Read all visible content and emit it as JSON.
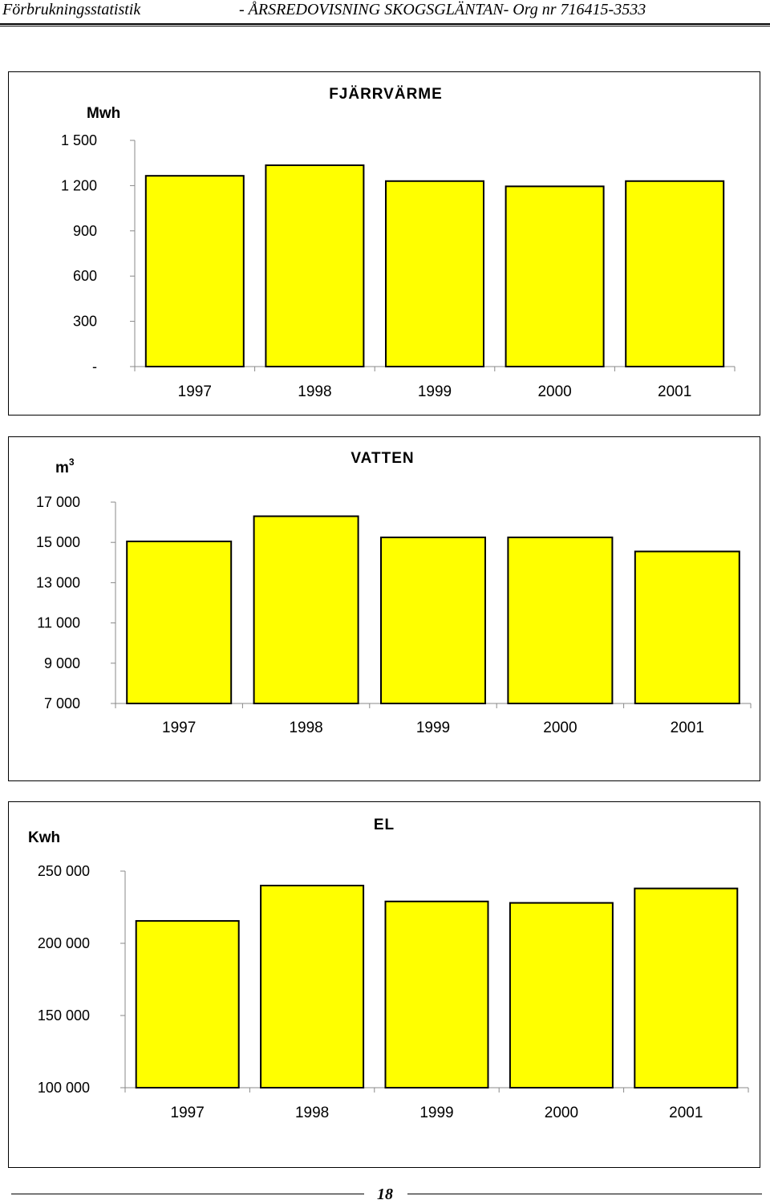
{
  "header": {
    "left": "Förbrukningsstatistik",
    "right": "- ÅRSREDOVISNING SKOGSGLÄNTAN- Org nr 716415-3533"
  },
  "page_number": "18",
  "colors": {
    "bar_fill": "#ffff00",
    "bar_stroke": "#000000"
  },
  "chart_data": [
    {
      "type": "bar",
      "title": "FJÄRRVÄRME",
      "unit": "Mwh",
      "categories": [
        "1997",
        "1998",
        "1999",
        "2000",
        "2001"
      ],
      "values": [
        1265,
        1335,
        1230,
        1195,
        1230
      ],
      "ylim": [
        0,
        1500
      ],
      "yticks": [
        0,
        300,
        600,
        900,
        1200,
        1500
      ],
      "ytick_labels": [
        "-",
        "300",
        "600",
        "900",
        "1 200",
        "1 500"
      ],
      "grid": false
    },
    {
      "type": "bar",
      "title": "VATTEN",
      "unit": "m",
      "unit_sup": "3",
      "categories": [
        "1997",
        "1998",
        "1999",
        "2000",
        "2001"
      ],
      "values": [
        15050,
        16300,
        15250,
        15250,
        14550
      ],
      "ylim": [
        7000,
        17000
      ],
      "yticks": [
        7000,
        9000,
        11000,
        13000,
        15000,
        17000
      ],
      "ytick_labels": [
        "7 000",
        "9 000",
        "11 000",
        "13 000",
        "15 000",
        "17 000"
      ],
      "grid": false
    },
    {
      "type": "bar",
      "title": "EL",
      "unit": "Kwh",
      "categories": [
        "1997",
        "1998",
        "1999",
        "2000",
        "2001"
      ],
      "values": [
        215500,
        240000,
        229000,
        228000,
        238000
      ],
      "ylim": [
        100000,
        250000
      ],
      "yticks": [
        100000,
        150000,
        200000,
        250000
      ],
      "ytick_labels": [
        "100 000",
        "150 000",
        "200 000",
        "250 000"
      ],
      "grid": false
    }
  ]
}
